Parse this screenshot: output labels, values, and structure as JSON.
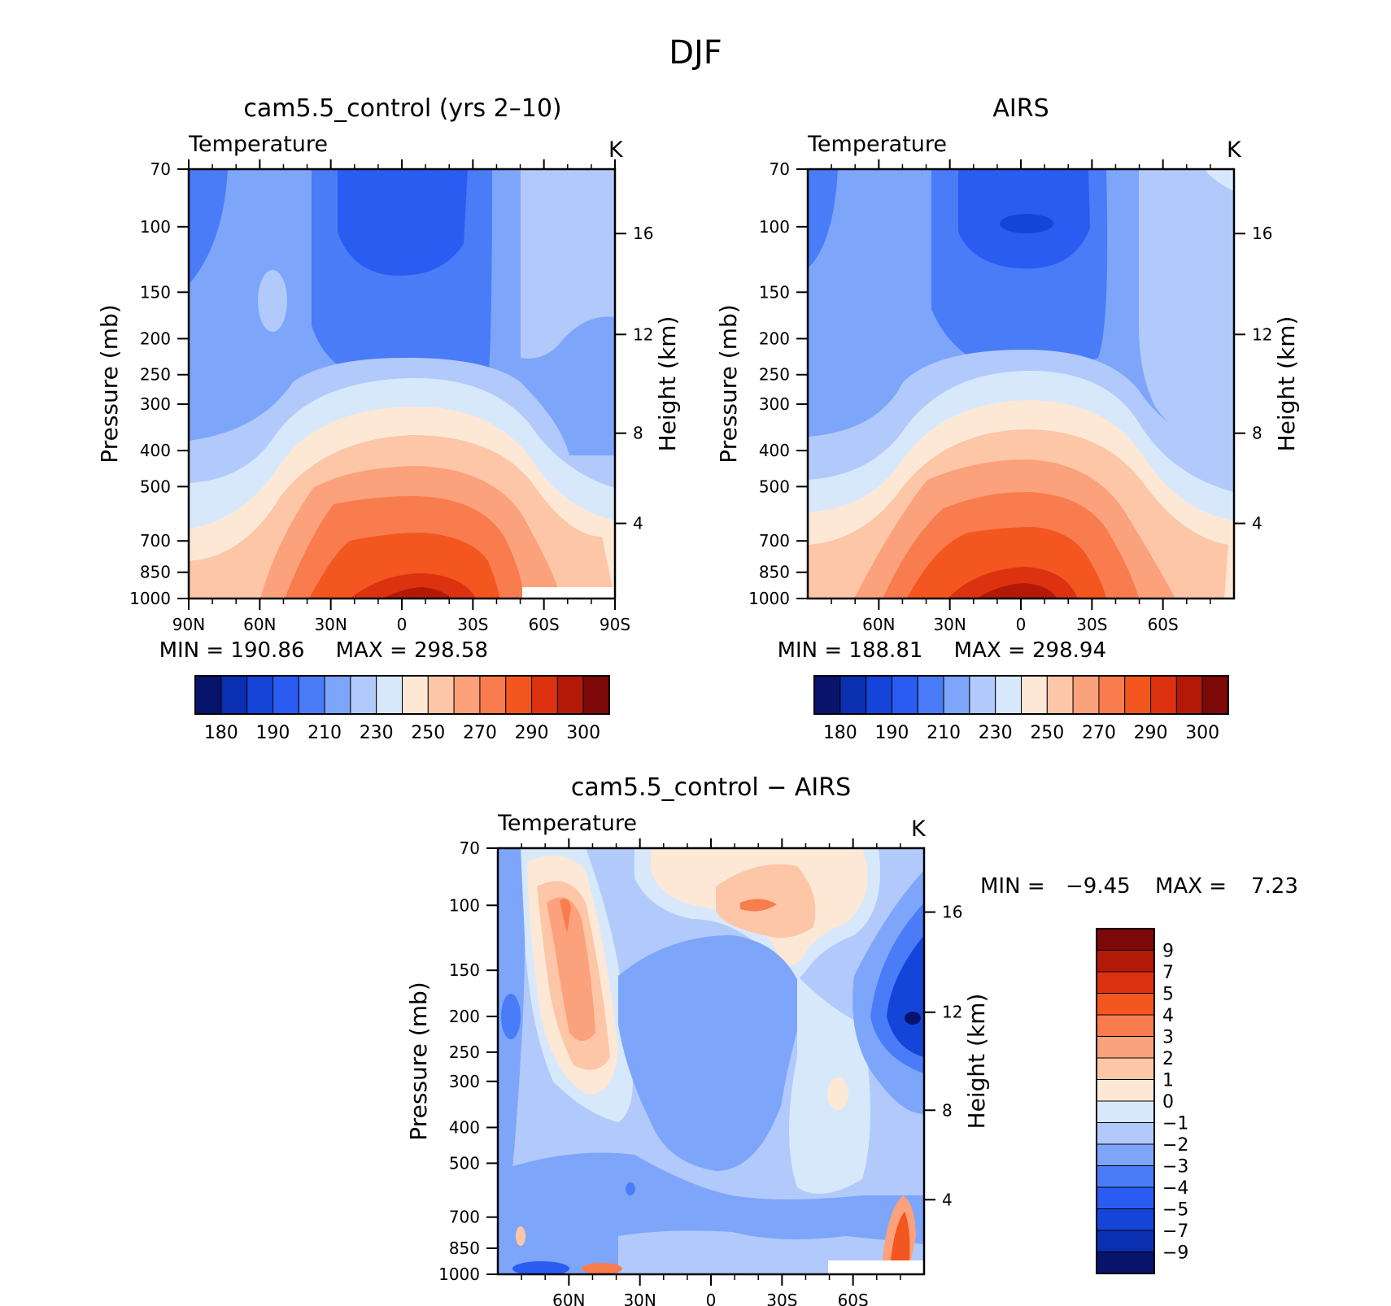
{
  "figure_title": "DJF",
  "colormaps": {
    "abs": [
      "#08146b",
      "#0a2fb0",
      "#1545d8",
      "#2a5cf2",
      "#4a7cf8",
      "#7da6fa",
      "#b2c9fb",
      "#d8e8fb",
      "#fde8d6",
      "#fcc6a7",
      "#fba17b",
      "#f87c4d",
      "#f3561f",
      "#dc3210",
      "#b21a07",
      "#7d0808"
    ],
    "diff": [
      "#08146b",
      "#0a2fb0",
      "#1545d8",
      "#2a5cf2",
      "#4a7cf8",
      "#7da6fa",
      "#b2c9fb",
      "#d8e8fb",
      "#fde8d6",
      "#fcc6a7",
      "#fba17b",
      "#f87c4d",
      "#f3561f",
      "#dc3210",
      "#b21a07",
      "#7d0808"
    ]
  },
  "axis_labels": {
    "pressure_label": "Pressure (mb)",
    "height_label": "Height (km)",
    "variable": "Temperature",
    "units": "K"
  },
  "pressure_ticks": [
    "70",
    "100",
    "150",
    "200",
    "250",
    "300",
    "400",
    "500",
    "700",
    "850",
    "1000"
  ],
  "height_ticks": [
    "16",
    "12",
    "8",
    "4"
  ],
  "chart_data": [
    {
      "type": "heatmap",
      "title": "cam5.5_control (yrs 2–10)",
      "variable": "Temperature",
      "units": "K",
      "x_ticks": [
        "90N",
        "60N",
        "30N",
        "0",
        "30S",
        "60S",
        "90S"
      ],
      "y_ticks_pressure_mb": [
        70,
        100,
        150,
        200,
        250,
        300,
        400,
        500,
        700,
        850,
        1000
      ],
      "y_ticks_height_km": [
        16,
        12,
        8,
        4
      ],
      "min_label": "MIN = 190.86",
      "max_label": "MAX = 298.58",
      "min": 190.86,
      "max": 298.58,
      "colorbar_labels": [
        "180",
        "190",
        "210",
        "230",
        "250",
        "270",
        "290",
        "300"
      ],
      "colorbar_levels": [
        180,
        185,
        190,
        200,
        210,
        220,
        230,
        240,
        250,
        260,
        270,
        280,
        290,
        295,
        300
      ]
    },
    {
      "type": "heatmap",
      "title": "AIRS",
      "variable": "Temperature",
      "units": "K",
      "x_ticks": [
        "60N",
        "30N",
        "0",
        "30S",
        "60S"
      ],
      "y_ticks_pressure_mb": [
        70,
        100,
        150,
        200,
        250,
        300,
        400,
        500,
        700,
        850,
        1000
      ],
      "y_ticks_height_km": [
        16,
        12,
        8,
        4
      ],
      "min_label": "MIN = 188.81",
      "max_label": "MAX = 298.94",
      "min": 188.81,
      "max": 298.94,
      "colorbar_labels": [
        "180",
        "190",
        "210",
        "230",
        "250",
        "270",
        "290",
        "300"
      ],
      "colorbar_levels": [
        180,
        185,
        190,
        200,
        210,
        220,
        230,
        240,
        250,
        260,
        270,
        280,
        290,
        295,
        300
      ]
    },
    {
      "type": "heatmap",
      "title": "cam5.5_control − AIRS",
      "variable": "Temperature",
      "units": "K",
      "x_ticks": [
        "60N",
        "30N",
        "0",
        "30S",
        "60S"
      ],
      "y_ticks_pressure_mb": [
        70,
        100,
        150,
        200,
        250,
        300,
        400,
        500,
        700,
        850,
        1000
      ],
      "y_ticks_height_km": [
        16,
        12,
        8,
        4
      ],
      "min_label": "MIN =",
      "min_value": "−9.45",
      "max_label": "MAX =",
      "max_value": "7.23",
      "min": -9.45,
      "max": 7.23,
      "colorbar_labels": [
        "9",
        "7",
        "5",
        "4",
        "3",
        "2",
        "1",
        "0",
        "−1",
        "−2",
        "−3",
        "−4",
        "−5",
        "−7",
        "−9"
      ],
      "colorbar_levels": [
        9,
        7,
        5,
        4,
        3,
        2,
        1,
        0,
        -1,
        -2,
        -3,
        -4,
        -5,
        -7,
        -9
      ]
    }
  ]
}
